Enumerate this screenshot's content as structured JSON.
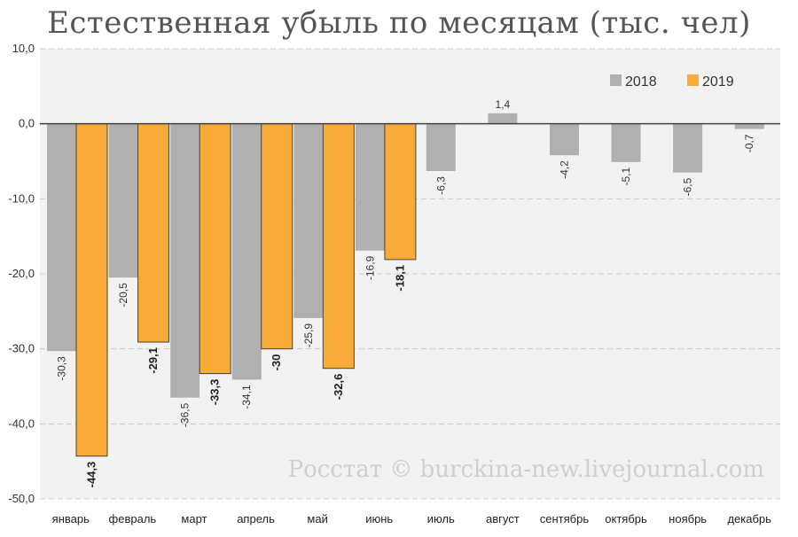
{
  "chart_data": {
    "type": "bar",
    "title": "Естественная убыль по месяцам (тыс. чел)",
    "categories": [
      "январь",
      "февраль",
      "март",
      "апрель",
      "май",
      "июнь",
      "июль",
      "август",
      "сентябрь",
      "октябрь",
      "ноябрь",
      "декабрь"
    ],
    "series": [
      {
        "name": "2018",
        "color": "#b0b0b0",
        "values": [
          -30.3,
          -20.5,
          -36.5,
          -34.1,
          -25.9,
          -16.9,
          -6.3,
          1.4,
          -4.2,
          -5.1,
          -6.5,
          -0.7
        ],
        "labels": [
          "-30,3",
          "-20,5",
          "-36,5",
          "-34,1",
          "-25,9",
          "-16,9",
          "-6,3",
          "1,4",
          "-4,2",
          "-5,1",
          "-6,5",
          "-0,7"
        ]
      },
      {
        "name": "2019",
        "color": "#f9ab39",
        "values": [
          -44.3,
          -29.1,
          -33.3,
          -30,
          -32.6,
          -18.1,
          null,
          null,
          null,
          null,
          null,
          null
        ],
        "labels": [
          "-44,3",
          "-29,1",
          "-33,3",
          "-30",
          "-32,6",
          "-18,1",
          "",
          "",
          "",
          "",
          "",
          ""
        ]
      }
    ],
    "ylim": [
      -50,
      10
    ],
    "yticks": [
      10,
      0,
      -10,
      -20,
      -30,
      -40,
      -50
    ],
    "ytick_labels": [
      "10,0",
      "0,0",
      "-10,0",
      "-20,0",
      "-30,0",
      "-40,0",
      "-50,0"
    ],
    "xlabel": "",
    "ylabel": "",
    "grid": true,
    "legend_position": "top-right",
    "annotation": "Росстат © burckina-new.livejournal.com"
  }
}
